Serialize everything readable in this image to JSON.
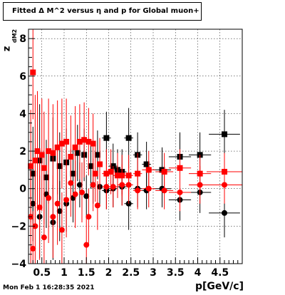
{
  "title": "Fitted Δ M^2 versus η and p for Global muon+",
  "timestamp": "Mon Feb  1 16:28:35 2021",
  "ylabel_main": "z",
  "ylabel_sub": "dM2",
  "chart_data": {
    "type": "scatter",
    "title": "Fitted Δ M^2 versus η and p for Global muon+",
    "xlabel": "p[GeV/c]",
    "ylabel": "z dM2",
    "xlim": [
      0.2,
      5.0
    ],
    "ylim": [
      -4.0,
      8.5
    ],
    "xticks": [
      0.5,
      1,
      1.5,
      2,
      2.5,
      3,
      3.5,
      4,
      4.5
    ],
    "xtick_labels": [
      "0.5",
      "1",
      "1.5",
      "2",
      "2.5",
      "3",
      "3.5",
      "4",
      "4.5"
    ],
    "yticks": [
      -4,
      -2,
      0,
      2,
      4,
      6,
      8
    ],
    "ytick_labels": [
      "−4",
      "−2",
      "0",
      "2",
      "4",
      "6",
      "8"
    ],
    "grid": true,
    "series": [
      {
        "color": "#000000",
        "marker": "square",
        "points": [
          {
            "x": 0.3,
            "y": 0.8,
            "ex": 0.05,
            "ey": 2.5
          },
          {
            "x": 0.45,
            "y": 1.5,
            "ex": 0.05,
            "ey": 3.0
          },
          {
            "x": 0.6,
            "y": 0.6,
            "ex": 0.05,
            "ey": 2.0
          },
          {
            "x": 0.75,
            "y": 1.6,
            "ex": 0.05,
            "ey": 2.2
          },
          {
            "x": 0.9,
            "y": 1.2,
            "ex": 0.05,
            "ey": 1.8
          },
          {
            "x": 1.05,
            "y": 1.4,
            "ex": 0.05,
            "ey": 1.8
          },
          {
            "x": 1.2,
            "y": 0.8,
            "ex": 0.05,
            "ey": 1.4
          },
          {
            "x": 1.3,
            "y": 1.9,
            "ex": 0.05,
            "ey": 1.5
          },
          {
            "x": 1.45,
            "y": 1.8,
            "ex": 0.05,
            "ey": 1.4
          },
          {
            "x": 1.6,
            "y": 1.2,
            "ex": 0.05,
            "ey": 1.2
          },
          {
            "x": 1.75,
            "y": 1.8,
            "ex": 0.05,
            "ey": 1.3
          },
          {
            "x": 1.95,
            "y": 2.7,
            "ex": 0.1,
            "ey": 1.4
          },
          {
            "x": 2.1,
            "y": 1.2,
            "ex": 0.1,
            "ey": 1.2
          },
          {
            "x": 2.2,
            "y": 1.0,
            "ex": 0.1,
            "ey": 1.1
          },
          {
            "x": 2.3,
            "y": 0.9,
            "ex": 0.1,
            "ey": 1.2
          },
          {
            "x": 2.45,
            "y": 2.7,
            "ex": 0.1,
            "ey": 1.6
          },
          {
            "x": 2.65,
            "y": 1.8,
            "ex": 0.1,
            "ey": 1.2
          },
          {
            "x": 2.85,
            "y": 1.3,
            "ex": 0.1,
            "ey": 1.2
          },
          {
            "x": 3.2,
            "y": 1.0,
            "ex": 0.2,
            "ey": 1.2
          },
          {
            "x": 3.6,
            "y": 1.7,
            "ex": 0.25,
            "ey": 1.3
          },
          {
            "x": 4.05,
            "y": 1.8,
            "ex": 0.25,
            "ey": 1.2
          },
          {
            "x": 4.6,
            "y": 2.9,
            "ex": 0.35,
            "ey": 1.3
          }
        ]
      },
      {
        "color": "#000000",
        "marker": "circle",
        "points": [
          {
            "x": 0.3,
            "y": -0.8,
            "ex": 0.05,
            "ey": 2.0
          },
          {
            "x": 0.45,
            "y": -1.5,
            "ex": 0.05,
            "ey": 2.2
          },
          {
            "x": 0.6,
            "y": -0.3,
            "ex": 0.05,
            "ey": 1.8
          },
          {
            "x": 0.75,
            "y": -1.8,
            "ex": 0.05,
            "ey": 2.0
          },
          {
            "x": 0.9,
            "y": -1.2,
            "ex": 0.05,
            "ey": 1.6
          },
          {
            "x": 1.05,
            "y": -0.8,
            "ex": 0.05,
            "ey": 1.5
          },
          {
            "x": 1.2,
            "y": -0.5,
            "ex": 0.05,
            "ey": 1.3
          },
          {
            "x": 1.35,
            "y": 0.2,
            "ex": 0.05,
            "ey": 1.2
          },
          {
            "x": 1.5,
            "y": -0.4,
            "ex": 0.05,
            "ey": 1.1
          },
          {
            "x": 1.65,
            "y": 0.2,
            "ex": 0.05,
            "ey": 1.0
          },
          {
            "x": 1.8,
            "y": 0.1,
            "ex": 0.05,
            "ey": 1.0
          },
          {
            "x": 1.95,
            "y": -0.1,
            "ex": 0.1,
            "ey": 1.0
          },
          {
            "x": 2.1,
            "y": 0.0,
            "ex": 0.1,
            "ey": 1.0
          },
          {
            "x": 2.3,
            "y": 0.1,
            "ex": 0.1,
            "ey": 1.0
          },
          {
            "x": 2.45,
            "y": -0.8,
            "ex": 0.1,
            "ey": 1.4
          },
          {
            "x": 2.65,
            "y": 0.0,
            "ex": 0.1,
            "ey": 1.0
          },
          {
            "x": 2.85,
            "y": -0.1,
            "ex": 0.1,
            "ey": 1.0
          },
          {
            "x": 3.2,
            "y": 0.0,
            "ex": 0.2,
            "ey": 1.0
          },
          {
            "x": 3.6,
            "y": -0.6,
            "ex": 0.25,
            "ey": 1.1
          },
          {
            "x": 4.05,
            "y": -0.2,
            "ex": 0.25,
            "ey": 1.1
          },
          {
            "x": 4.6,
            "y": -1.3,
            "ex": 0.35,
            "ey": 1.3
          }
        ]
      },
      {
        "color": "#ff0000",
        "marker": "square",
        "points": [
          {
            "x": 0.25,
            "y": 1.2,
            "ex": 0.05,
            "ey": 3.0
          },
          {
            "x": 0.3,
            "y": 6.2,
            "ex": 0.03,
            "ey": 2.5
          },
          {
            "x": 0.35,
            "y": 1.5,
            "ex": 0.05,
            "ey": 3.5
          },
          {
            "x": 0.4,
            "y": 2.0,
            "ex": 0.05,
            "ey": 3.2
          },
          {
            "x": 0.5,
            "y": 1.8,
            "ex": 0.05,
            "ey": 3.0
          },
          {
            "x": 0.55,
            "y": 1.1,
            "ex": 0.05,
            "ey": 3.0
          },
          {
            "x": 0.65,
            "y": 2.0,
            "ex": 0.05,
            "ey": 2.8
          },
          {
            "x": 0.75,
            "y": 1.9,
            "ex": 0.05,
            "ey": 2.6
          },
          {
            "x": 0.85,
            "y": 2.2,
            "ex": 0.05,
            "ey": 2.5
          },
          {
            "x": 0.95,
            "y": 2.4,
            "ex": 0.05,
            "ey": 2.4
          },
          {
            "x": 1.05,
            "y": 2.5,
            "ex": 0.05,
            "ey": 2.3
          },
          {
            "x": 1.15,
            "y": 1.7,
            "ex": 0.05,
            "ey": 2.2
          },
          {
            "x": 1.25,
            "y": 2.2,
            "ex": 0.05,
            "ey": 2.2
          },
          {
            "x": 1.35,
            "y": 2.5,
            "ex": 0.05,
            "ey": 2.0
          },
          {
            "x": 1.45,
            "y": 2.6,
            "ex": 0.05,
            "ey": 2.0
          },
          {
            "x": 1.55,
            "y": 2.5,
            "ex": 0.05,
            "ey": 1.8
          },
          {
            "x": 1.65,
            "y": 2.4,
            "ex": 0.05,
            "ey": 1.6
          },
          {
            "x": 1.7,
            "y": 0.8,
            "ex": 0.05,
            "ey": 1.5
          },
          {
            "x": 1.8,
            "y": 1.3,
            "ex": 0.05,
            "ey": 1.4
          },
          {
            "x": 1.95,
            "y": 0.8,
            "ex": 0.1,
            "ey": 1.3
          },
          {
            "x": 2.05,
            "y": 0.9,
            "ex": 0.1,
            "ey": 1.2
          },
          {
            "x": 2.2,
            "y": 0.7,
            "ex": 0.1,
            "ey": 1.2
          },
          {
            "x": 2.3,
            "y": 0.7,
            "ex": 0.1,
            "ey": 1.1
          },
          {
            "x": 2.45,
            "y": 0.7,
            "ex": 0.1,
            "ey": 1.1
          },
          {
            "x": 2.65,
            "y": 0.8,
            "ex": 0.1,
            "ey": 1.1
          },
          {
            "x": 2.9,
            "y": 1.0,
            "ex": 0.15,
            "ey": 1.0
          },
          {
            "x": 3.25,
            "y": 0.9,
            "ex": 0.2,
            "ey": 1.0
          },
          {
            "x": 3.6,
            "y": 1.1,
            "ex": 0.25,
            "ey": 1.0
          },
          {
            "x": 4.05,
            "y": 0.8,
            "ex": 0.25,
            "ey": 1.0
          },
          {
            "x": 4.6,
            "y": 0.9,
            "ex": 0.4,
            "ey": 1.0
          }
        ]
      },
      {
        "color": "#ff0000",
        "marker": "circle",
        "points": [
          {
            "x": 0.25,
            "y": -1.5,
            "ex": 0.05,
            "ey": 2.5
          },
          {
            "x": 0.3,
            "y": -3.2,
            "ex": 0.03,
            "ey": 2.0
          },
          {
            "x": 0.35,
            "y": -2.0,
            "ex": 0.05,
            "ey": 3.0
          },
          {
            "x": 0.45,
            "y": -1.0,
            "ex": 0.05,
            "ey": 2.8
          },
          {
            "x": 0.55,
            "y": -2.6,
            "ex": 0.05,
            "ey": 2.6
          },
          {
            "x": 0.65,
            "y": -0.5,
            "ex": 0.05,
            "ey": 2.4
          },
          {
            "x": 0.75,
            "y": -1.5,
            "ex": 0.05,
            "ey": 2.2
          },
          {
            "x": 0.85,
            "y": -0.8,
            "ex": 0.05,
            "ey": 2.2
          },
          {
            "x": 0.95,
            "y": -2.2,
            "ex": 0.05,
            "ey": 2.0
          },
          {
            "x": 1.05,
            "y": -0.6,
            "ex": 0.05,
            "ey": 2.0
          },
          {
            "x": 1.15,
            "y": 0.3,
            "ex": 0.05,
            "ey": 1.8
          },
          {
            "x": 1.25,
            "y": -0.3,
            "ex": 0.05,
            "ey": 1.8
          },
          {
            "x": 1.4,
            "y": -0.2,
            "ex": 0.05,
            "ey": 1.6
          },
          {
            "x": 1.5,
            "y": -3.0,
            "ex": 0.05,
            "ey": 1.5
          },
          {
            "x": 1.55,
            "y": -1.5,
            "ex": 0.05,
            "ey": 1.5
          },
          {
            "x": 1.65,
            "y": 0.2,
            "ex": 0.05,
            "ey": 1.4
          },
          {
            "x": 1.75,
            "y": -0.9,
            "ex": 0.05,
            "ey": 1.3
          },
          {
            "x": 1.95,
            "y": 0.1,
            "ex": 0.1,
            "ey": 1.2
          },
          {
            "x": 2.1,
            "y": 0.1,
            "ex": 0.1,
            "ey": 1.1
          },
          {
            "x": 2.3,
            "y": 0.2,
            "ex": 0.1,
            "ey": 1.1
          },
          {
            "x": 2.45,
            "y": 0.2,
            "ex": 0.1,
            "ey": 1.0
          },
          {
            "x": 2.65,
            "y": -0.1,
            "ex": 0.1,
            "ey": 1.0
          },
          {
            "x": 2.9,
            "y": 0.0,
            "ex": 0.15,
            "ey": 1.0
          },
          {
            "x": 3.25,
            "y": -0.1,
            "ex": 0.2,
            "ey": 1.0
          },
          {
            "x": 3.6,
            "y": -0.2,
            "ex": 0.25,
            "ey": 1.0
          },
          {
            "x": 4.05,
            "y": 0.2,
            "ex": 0.25,
            "ey": 1.0
          },
          {
            "x": 4.6,
            "y": 0.2,
            "ex": 0.4,
            "ey": 1.0
          }
        ]
      }
    ]
  }
}
